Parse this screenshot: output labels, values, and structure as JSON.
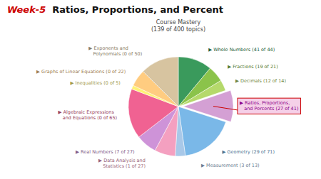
{
  "chart_data": {
    "type": "pie",
    "title": [
      "Week-5",
      "  Ratios, Proportions, and Percent"
    ],
    "subtitle": [
      "Course Mastery",
      "(139 of 400 topics)"
    ],
    "categories": [
      "▶ Whole Numbers (41 of 44)",
      "▶ Fractions (19 of 21)",
      "▶ Decimals (12 of 14)",
      "▶ Ratios, Proportions,\n   and Percents (27 of 41)",
      "▶ Geometry (29 of 71)",
      "▶ Measurement (3 of 13)",
      "▶ Data Analysis and\n   Statistics (1 of 27)",
      "▶ Real Numbers (7 of 27)",
      "▶ Algebraic Expressions\n   and Equations (0 of 65)",
      "▶ Inequalities (0 of 5)",
      "▶ Graphs of Linear Equations (0 of 22)",
      "▶ Exponents and\n   Polynomials (0 of 50)"
    ],
    "values": [
      44,
      21,
      14,
      41,
      71,
      13,
      27,
      27,
      65,
      5,
      22,
      50
    ],
    "colors": [
      "#3a9a5c",
      "#8bc34a",
      "#b5d96b",
      "#d4a0d4",
      "#7ab8e8",
      "#a8c8e8",
      "#f4a0c0",
      "#ce93d8",
      "#f06292",
      "#fff176",
      "#ffcc80",
      "#d7c4a0"
    ]
  }
}
